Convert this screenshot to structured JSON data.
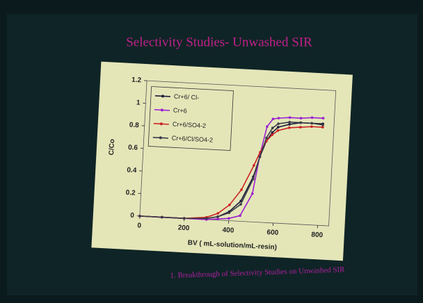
{
  "chart_data": {
    "type": "line",
    "title": "Selectivity Studies- Unwashed SIR",
    "caption": "1. Breakthrough of Selectivity Studies on Unwashed SIR",
    "x_label": "BV ( mL-solution/mL-resin)",
    "y_label": "C/Co",
    "x": [
      0,
      100,
      200,
      300,
      350,
      400,
      450,
      500,
      525,
      550,
      575,
      600,
      650,
      700,
      750,
      800
    ],
    "series": [
      {
        "name": "Cr+6/ Cl-",
        "color": "#1c1c3c",
        "values": [
          0,
          0,
          0,
          0.01,
          0.03,
          0.08,
          0.18,
          0.4,
          0.58,
          0.72,
          0.8,
          0.85,
          0.88,
          0.9,
          0.9,
          0.9
        ]
      },
      {
        "name": "Cr+6",
        "color": "#9b1fd1",
        "values": [
          0,
          0,
          0,
          0,
          0.01,
          0.02,
          0.05,
          0.25,
          0.6,
          0.85,
          0.92,
          0.93,
          0.94,
          0.94,
          0.95,
          0.95
        ]
      },
      {
        "name": "Cr+6/SO4-2",
        "color": "#cc2222",
        "values": [
          0,
          0,
          0,
          0.02,
          0.06,
          0.14,
          0.28,
          0.5,
          0.62,
          0.72,
          0.78,
          0.82,
          0.85,
          0.86,
          0.87,
          0.87
        ]
      },
      {
        "name": "Cr+6/Cl/SO4-2",
        "color": "#3a3a48",
        "values": [
          0,
          0,
          0,
          0.01,
          0.03,
          0.07,
          0.15,
          0.38,
          0.58,
          0.75,
          0.84,
          0.88,
          0.9,
          0.9,
          0.9,
          0.89
        ]
      }
    ],
    "xlim": [
      0,
      850
    ],
    "xticks": [
      0,
      200,
      400,
      600,
      800
    ],
    "ylim": [
      0,
      1.2
    ],
    "yticks": [
      0,
      0.2,
      0.4,
      0.6,
      0.8,
      1,
      1.2
    ],
    "legend": "upper-left"
  }
}
